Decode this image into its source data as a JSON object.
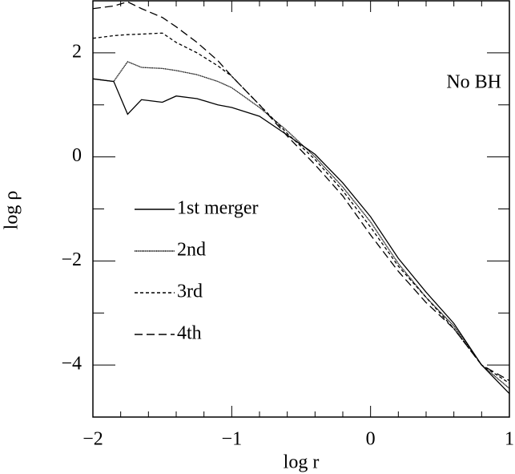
{
  "chart_data": {
    "type": "line",
    "annotation": "No BH",
    "x_label": "log r",
    "y_label": "log ρ",
    "x": [
      -2,
      -1.85,
      -1.75,
      -1.65,
      -1.5,
      -1.4,
      -1.25,
      -1.1,
      -1,
      -0.8,
      -0.6,
      -0.4,
      -0.2,
      0,
      0.2,
      0.4,
      0.6,
      0.8,
      1
    ],
    "series": [
      {
        "name": "1st merger",
        "color": "#000000",
        "dash": "solid",
        "values": [
          1.5,
          1.45,
          0.82,
          1.1,
          1.05,
          1.17,
          1.12,
          1.0,
          0.95,
          0.78,
          0.42,
          0.05,
          -0.5,
          -1.15,
          -1.95,
          -2.6,
          -3.2,
          -4.0,
          -4.55
        ]
      },
      {
        "name": "2nd",
        "color": "#000000",
        "dash": "dotted",
        "values": [
          1.5,
          1.45,
          1.83,
          1.72,
          1.7,
          1.66,
          1.58,
          1.45,
          1.33,
          0.95,
          0.5,
          0.0,
          -0.58,
          -1.25,
          -2.05,
          -2.7,
          -3.25,
          -4.0,
          -4.45
        ]
      },
      {
        "name": "3rd",
        "color": "#000000",
        "dash": "short-dash",
        "values": [
          2.28,
          2.33,
          2.35,
          2.36,
          2.38,
          2.2,
          2.0,
          1.75,
          1.55,
          1.0,
          0.45,
          -0.05,
          -0.65,
          -1.35,
          -2.1,
          -2.7,
          -3.3,
          -4.0,
          -4.35
        ]
      },
      {
        "name": "4th",
        "color": "#000000",
        "dash": "long-dash",
        "values": [
          2.85,
          2.9,
          2.98,
          2.85,
          2.68,
          2.5,
          2.2,
          1.85,
          1.55,
          1.0,
          0.4,
          -0.15,
          -0.75,
          -1.5,
          -2.2,
          -2.8,
          -3.3,
          -4.0,
          -4.3
        ]
      }
    ],
    "xlim": [
      -2,
      1
    ],
    "ylim": [
      -5,
      3
    ],
    "xticks": [
      {
        "value": -2,
        "label": "−2"
      },
      {
        "value": -1,
        "label": "−1"
      },
      0,
      1
    ],
    "yticks": [
      {
        "value": -4,
        "label": "−4"
      },
      {
        "value": -2,
        "label": "−2"
      },
      0,
      2
    ]
  }
}
